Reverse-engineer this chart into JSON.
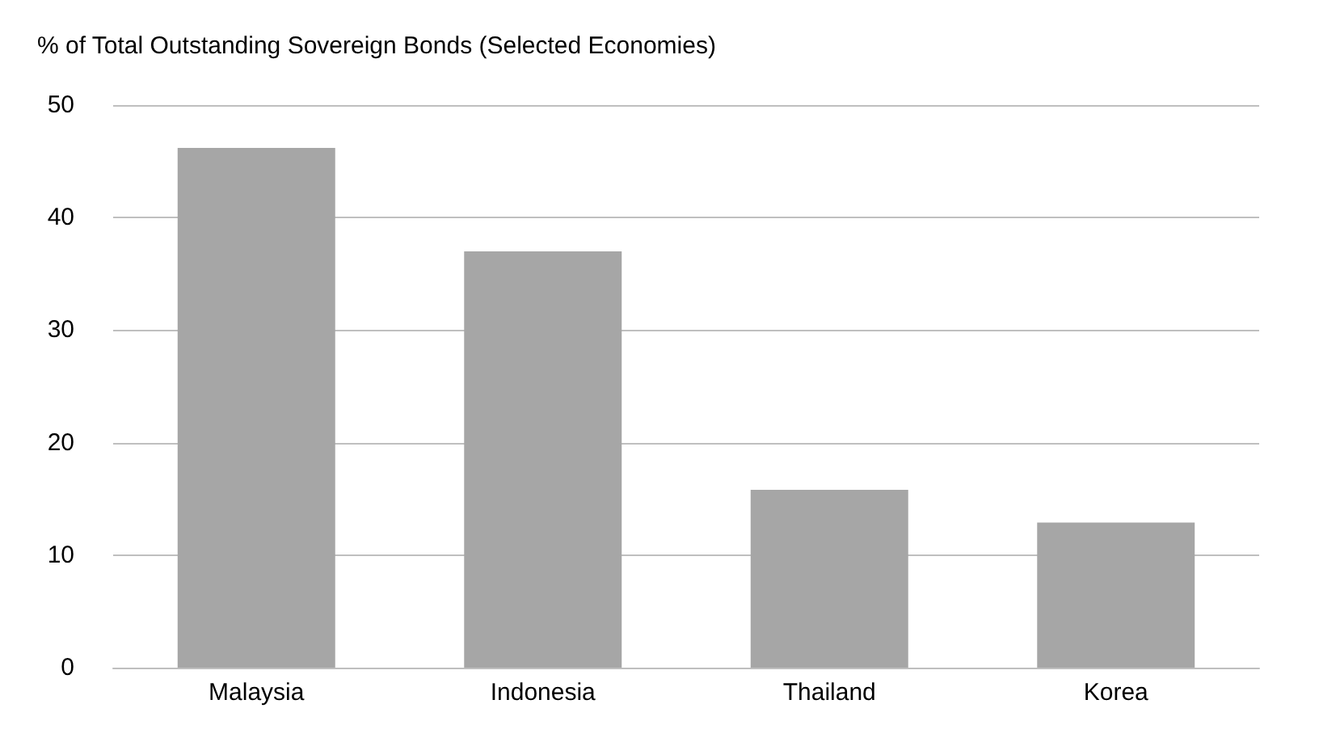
{
  "chart_data": {
    "type": "bar",
    "title": "% of Total Outstanding Sovereign Bonds (Selected Economies)",
    "categories": [
      "Malaysia",
      "Indonesia",
      "Thailand",
      "Korea"
    ],
    "values": [
      46.2,
      37.0,
      15.8,
      12.9
    ],
    "color": "#a6a6a6",
    "ylim": [
      0,
      50
    ],
    "yticks": [
      0,
      10,
      20,
      30,
      40,
      50
    ],
    "grid": "y"
  }
}
